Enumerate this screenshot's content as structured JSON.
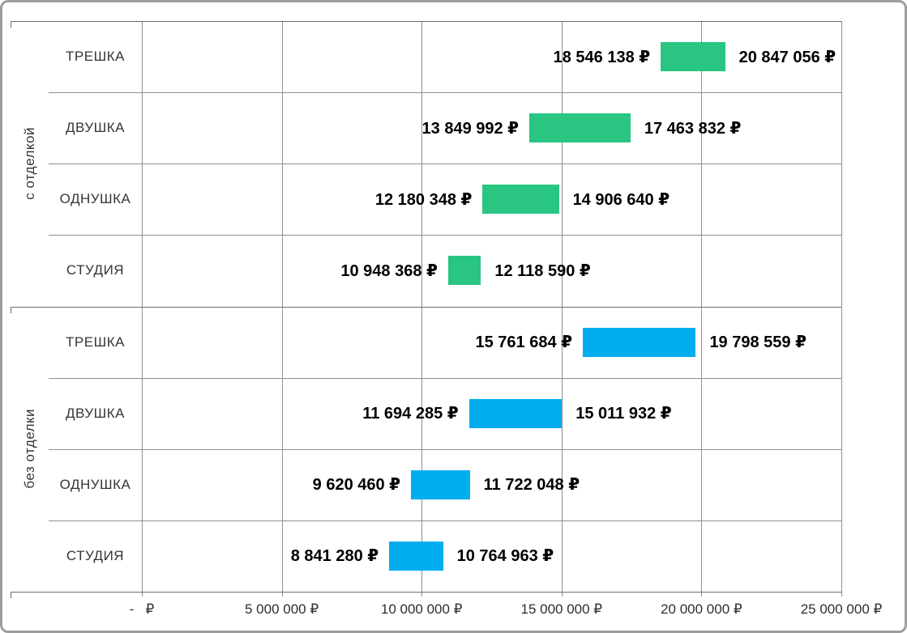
{
  "chart_data": {
    "type": "bar",
    "subtype": "range-floating-bar",
    "orientation": "horizontal",
    "title": "",
    "xlabel": "",
    "ylabel": "",
    "grid": true,
    "legend": false,
    "currency_symbol": "₽",
    "x_axis": {
      "min": 0,
      "max": 25000000,
      "ticks": [
        {
          "value": 0,
          "label": "-   ₽"
        },
        {
          "value": 5000000,
          "label": "5 000 000 ₽"
        },
        {
          "value": 10000000,
          "label": "10 000 000 ₽"
        },
        {
          "value": 15000000,
          "label": "15 000 000 ₽"
        },
        {
          "value": 20000000,
          "label": "20 000 000 ₽"
        },
        {
          "value": 25000000,
          "label": "25 000 000 ₽"
        }
      ]
    },
    "groups": [
      {
        "name": "с отделкой",
        "color": "#29c581",
        "rows": [
          {
            "category": "ТРЕШКА",
            "min": 18546138,
            "max": 20847056,
            "min_label": "18 546 138 ₽",
            "max_label": "20 847 056 ₽"
          },
          {
            "category": "ДВУШКА",
            "min": 13849992,
            "max": 17463832,
            "min_label": "13 849 992 ₽",
            "max_label": "17 463 832 ₽"
          },
          {
            "category": "ОДНУШКА",
            "min": 12180348,
            "max": 14906640,
            "min_label": "12 180 348 ₽",
            "max_label": "14 906 640 ₽"
          },
          {
            "category": "СТУДИЯ",
            "min": 10948368,
            "max": 12118590,
            "min_label": "10 948 368 ₽",
            "max_label": "12 118 590 ₽"
          }
        ]
      },
      {
        "name": "без отделки",
        "color": "#00aeef",
        "rows": [
          {
            "category": "ТРЕШКА",
            "min": 15761684,
            "max": 19798559,
            "min_label": "15 761 684 ₽",
            "max_label": "19 798 559 ₽"
          },
          {
            "category": "ДВУШКА",
            "min": 11694285,
            "max": 15011932,
            "min_label": "11 694 285 ₽",
            "max_label": "15 011 932 ₽"
          },
          {
            "category": "ОДНУШКА",
            "min": 9620460,
            "max": 11722048,
            "min_label": "9 620 460 ₽",
            "max_label": "11 722 048 ₽"
          },
          {
            "category": "СТУДИЯ",
            "min": 8841280,
            "max": 10764963,
            "min_label": "8 841 280 ₽",
            "max_label": "10 764 963 ₽"
          }
        ]
      }
    ],
    "colors": {
      "with_finishing_bar": "#29c581",
      "without_finishing_bar": "#00aeef",
      "gridline": "#8f8f8f",
      "frame_line": "#6d6d6d",
      "outer_border": "#9d9d9d",
      "label_text": "#000000",
      "category_text": "#353535"
    }
  }
}
